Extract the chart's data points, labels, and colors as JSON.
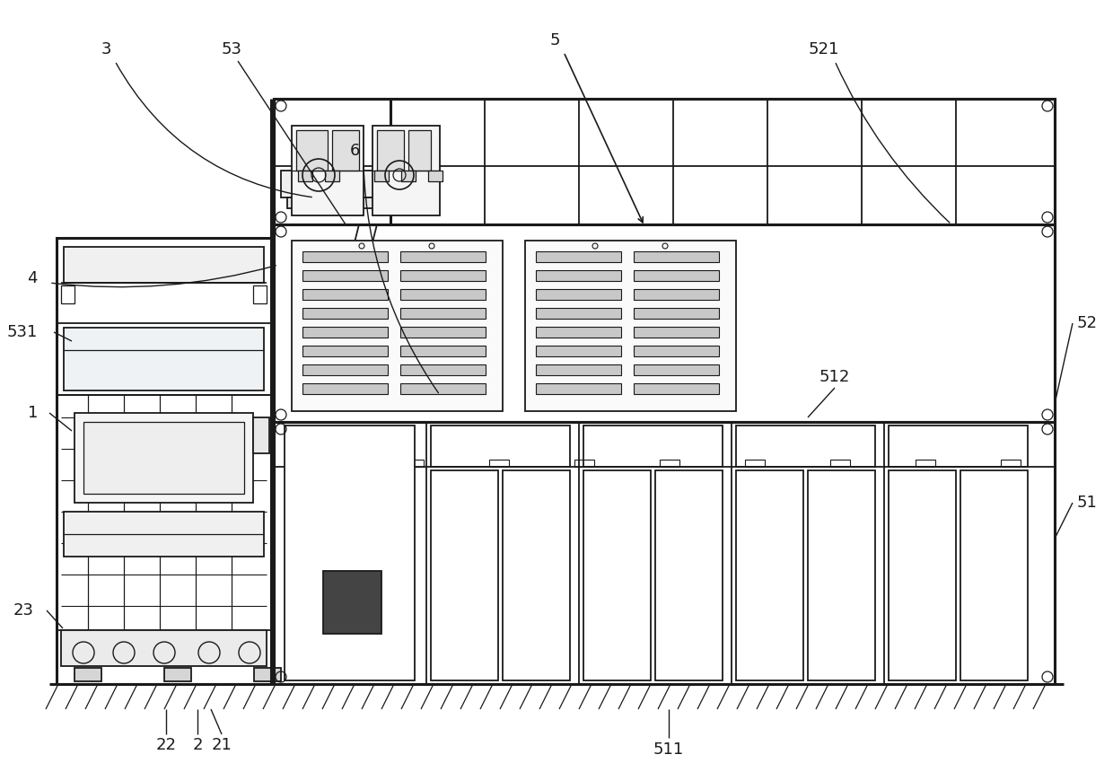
{
  "bg_color": "#ffffff",
  "lc": "#1a1a1a",
  "lw": 1.3,
  "tlw": 2.2,
  "figure_width": 12.4,
  "figure_height": 8.6,
  "dpi": 100
}
